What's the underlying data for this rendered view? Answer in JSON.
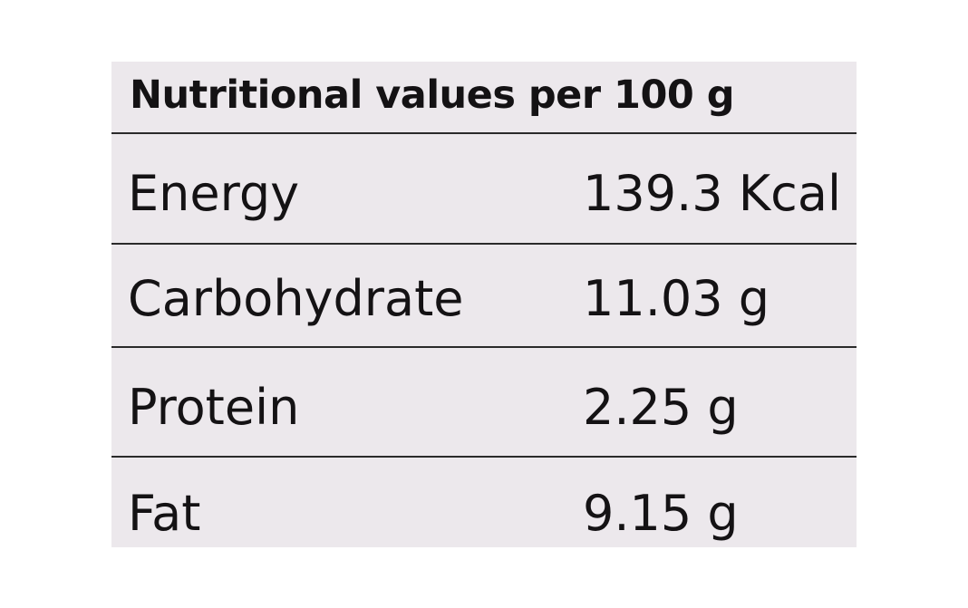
{
  "table": {
    "title": "Nutritional values per 100 g",
    "rows": [
      {
        "name": "Energy",
        "value": "139.3 Kcal"
      },
      {
        "name": "Carbohydrate",
        "value": "11.03 g"
      },
      {
        "name": "Protein",
        "value": "2.25 g"
      },
      {
        "name": "Fat",
        "value": "9.15 g"
      }
    ]
  },
  "colors": {
    "background": "#ece8ec",
    "text": "#141214",
    "rule": "#2a2a2a"
  }
}
